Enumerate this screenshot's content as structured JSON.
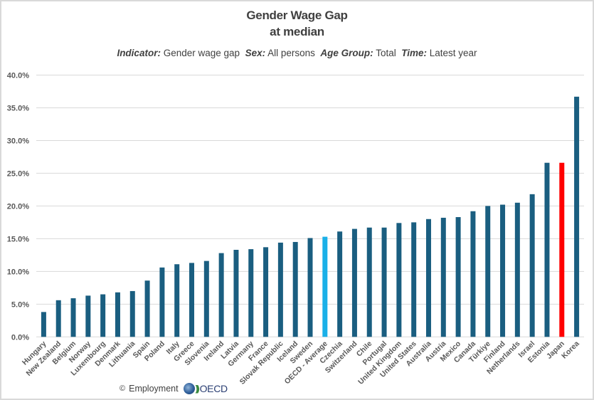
{
  "title_line1": "Gender Wage Gap",
  "title_line2": "at median",
  "subtitle": {
    "indicator_label": "Indicator:",
    "indicator_value": "Gender wage gap",
    "sex_label": "Sex:",
    "sex_value": "All persons",
    "age_label": "Age Group:",
    "age_value": "Total",
    "time_label": "Time:",
    "time_value": "Latest year"
  },
  "footer": {
    "copyright": "©",
    "source": "Employment",
    "logo_text": "OECD"
  },
  "colors": {
    "default_bar": "#1a5e80",
    "oecd_average_bar": "#1ab0e8",
    "highlight_bar": "#ff0000",
    "gridline": "#d9d9d9",
    "text": "#595959"
  },
  "chart_data": {
    "type": "bar",
    "title": "Gender Wage Gap at median",
    "subtitle": "Indicator: Gender wage gap  Sex: All persons  Age Group: Total  Time: Latest year",
    "xlabel": "",
    "ylabel": "",
    "ylim": [
      0,
      40
    ],
    "yticks": [
      0,
      5,
      10,
      15,
      20,
      25,
      30,
      35,
      40
    ],
    "ytick_labels": [
      "0.0%",
      "5.0%",
      "10.0%",
      "15.0%",
      "20.0%",
      "25.0%",
      "30.0%",
      "35.0%",
      "40.0%"
    ],
    "grid": true,
    "legend": "none",
    "categories": [
      "Hungary",
      "New Zealand",
      "Belgium",
      "Norway",
      "Luxembourg",
      "Denmark",
      "Lithuania",
      "Spain",
      "Poland",
      "Italy",
      "Greece",
      "Slovenia",
      "Ireland",
      "Latvia",
      "Germany",
      "France",
      "Slovak Republic",
      "Iceland",
      "Sweden",
      "OECD - Average",
      "Czechia",
      "Switzerland",
      "Chile",
      "Portugal",
      "United Kingdom",
      "United States",
      "Australia",
      "Austria",
      "Mexico",
      "Canada",
      "Türkiye",
      "Finland",
      "Netherlands",
      "Israel",
      "Estonia",
      "Japan",
      "Korea"
    ],
    "values": [
      3.8,
      5.6,
      5.9,
      6.3,
      6.5,
      6.8,
      7.0,
      8.6,
      10.6,
      11.1,
      11.3,
      11.6,
      12.8,
      13.3,
      13.4,
      13.7,
      14.4,
      14.5,
      15.1,
      15.3,
      16.1,
      16.5,
      16.7,
      16.7,
      17.4,
      17.5,
      18.0,
      18.2,
      18.3,
      19.2,
      20.0,
      20.2,
      20.5,
      21.8,
      26.6,
      26.6,
      36.7
    ],
    "highlight": {
      "OECD - Average": "oecd_average_bar",
      "Japan": "highlight_bar"
    },
    "unit": "%"
  }
}
